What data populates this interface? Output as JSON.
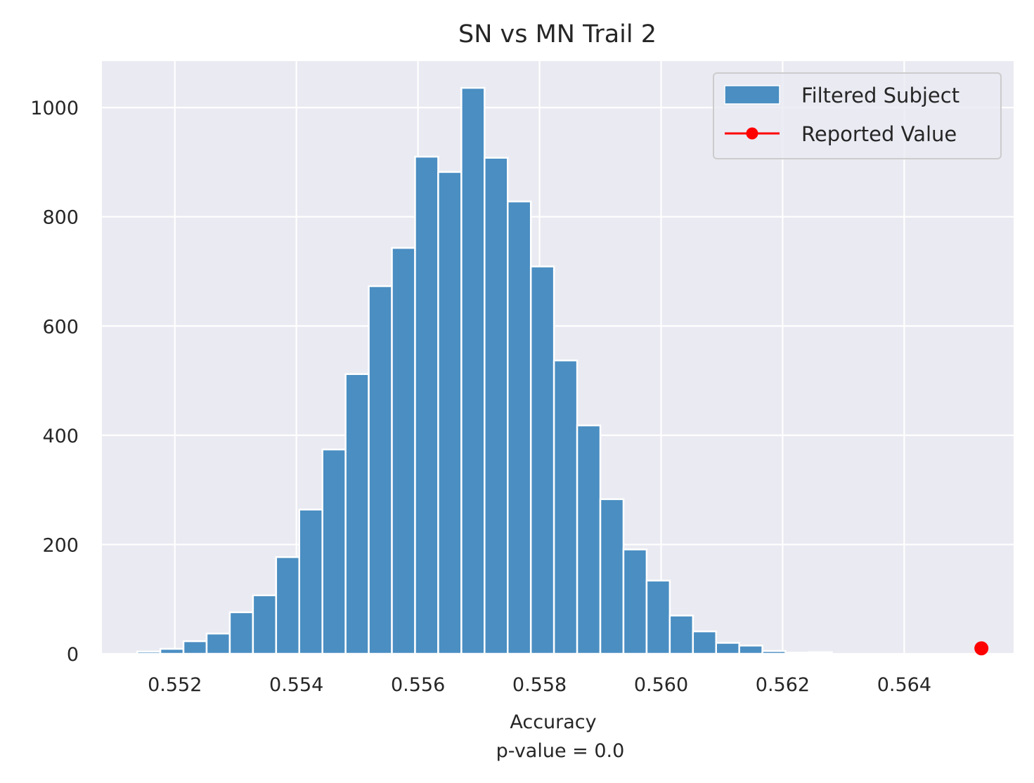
{
  "chart_data": {
    "type": "bar",
    "title": "SN vs MN Trail 2",
    "xlabel": "Accuracy",
    "xlabel_sub": "p-value = 0.0",
    "ylabel": "",
    "xlim": [
      0.5508,
      0.5658
    ],
    "ylim": [
      0,
      1085
    ],
    "xticks": [
      0.552,
      0.554,
      0.556,
      0.558,
      0.56,
      0.562,
      0.564
    ],
    "xtick_labels": [
      "0.552",
      "0.554",
      "0.556",
      "0.558",
      "0.560",
      "0.562",
      "0.564"
    ],
    "yticks": [
      0,
      200,
      400,
      600,
      800,
      1000
    ],
    "ytick_labels": [
      "0",
      "200",
      "400",
      "600",
      "800",
      "1000"
    ],
    "grid": true,
    "legend_position": "top-right",
    "histogram": {
      "name": "Filtered Subject",
      "color": "#4a8ec2",
      "bin_start": 0.55138,
      "bin_width": 0.000381,
      "counts": [
        4,
        9,
        23,
        37,
        76,
        107,
        177,
        264,
        374,
        512,
        673,
        743,
        910,
        882,
        1036,
        908,
        828,
        709,
        537,
        418,
        283,
        191,
        134,
        70,
        41,
        20,
        15,
        5,
        2,
        3
      ]
    },
    "reported_value": {
      "name": "Reported Value",
      "color": "#ff0000",
      "x": 0.56527,
      "y": 10
    },
    "colors": {
      "background": "#eaeaf2",
      "grid": "#ffffff",
      "bar_edge": "#ffffff"
    }
  }
}
